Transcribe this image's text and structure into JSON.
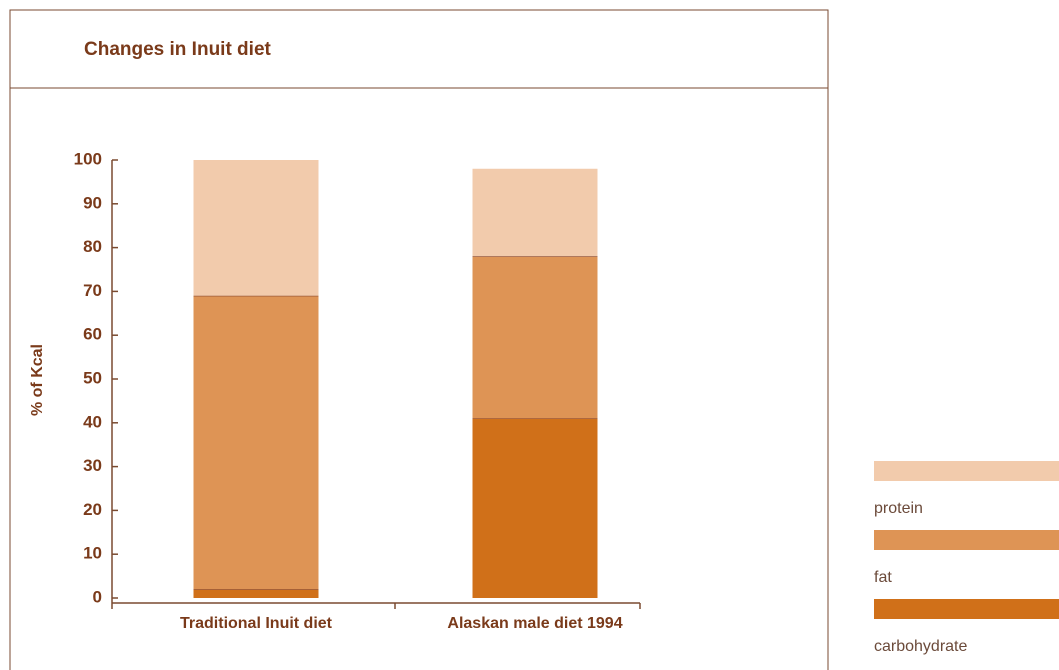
{
  "chart_data": {
    "type": "stacked_bar",
    "title": "Changes in Inuit diet",
    "ylabel": "% of Kcal",
    "categories": [
      "Traditional Inuit diet",
      "Alaskan male diet 1994"
    ],
    "series": [
      {
        "name": "carbohydrate",
        "color": "#d07019",
        "values": [
          2,
          41
        ]
      },
      {
        "name": "fat",
        "color": "#de9455",
        "values": [
          67,
          37
        ]
      },
      {
        "name": "protein",
        "color": "#f2cbac",
        "values": [
          31,
          20
        ]
      }
    ],
    "ylim": [
      0,
      100
    ],
    "yticks": [
      0,
      10,
      20,
      30,
      40,
      50,
      60,
      70,
      80,
      90,
      100
    ]
  }
}
